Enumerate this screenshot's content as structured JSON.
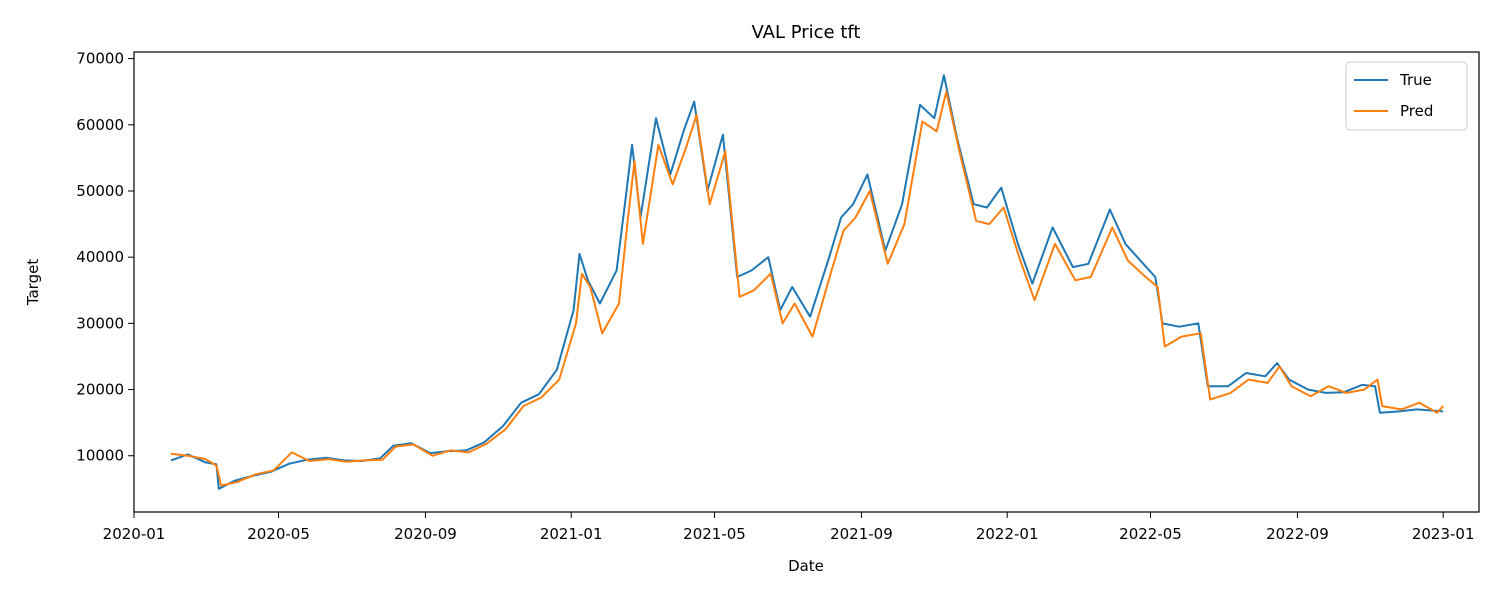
{
  "chart_data": {
    "type": "line",
    "title": "VAL Price tft",
    "xlabel": "Date",
    "ylabel": "Target",
    "xlim": [
      "2020-01-01",
      "2023-01-31"
    ],
    "ylim": [
      1500,
      71000
    ],
    "x_ticks": [
      "2020-01",
      "2020-05",
      "2020-09",
      "2021-01",
      "2021-05",
      "2021-09",
      "2022-01",
      "2022-05",
      "2022-09",
      "2023-01"
    ],
    "y_ticks": [
      10000,
      20000,
      30000,
      40000,
      50000,
      60000,
      70000
    ],
    "grid": false,
    "legend_position": "top-right",
    "series": [
      {
        "name": "True",
        "color": "#1f77b4",
        "points": [
          [
            "2020-02-01",
            9300
          ],
          [
            "2020-02-15",
            10200
          ],
          [
            "2020-03-01",
            9000
          ],
          [
            "2020-03-10",
            8700
          ],
          [
            "2020-03-12",
            5000
          ],
          [
            "2020-03-25",
            6200
          ],
          [
            "2020-04-10",
            7000
          ],
          [
            "2020-04-25",
            7600
          ],
          [
            "2020-05-10",
            8800
          ],
          [
            "2020-05-25",
            9400
          ],
          [
            "2020-06-10",
            9700
          ],
          [
            "2020-06-25",
            9300
          ],
          [
            "2020-07-10",
            9200
          ],
          [
            "2020-07-25",
            9600
          ],
          [
            "2020-08-05",
            11500
          ],
          [
            "2020-08-20",
            11900
          ],
          [
            "2020-09-05",
            10400
          ],
          [
            "2020-09-20",
            10700
          ],
          [
            "2020-10-05",
            10800
          ],
          [
            "2020-10-20",
            12000
          ],
          [
            "2020-11-05",
            14500
          ],
          [
            "2020-11-20",
            18000
          ],
          [
            "2020-12-05",
            19300
          ],
          [
            "2020-12-20",
            23000
          ],
          [
            "2021-01-03",
            32000
          ],
          [
            "2021-01-08",
            40500
          ],
          [
            "2021-01-15",
            36500
          ],
          [
            "2021-01-25",
            33000
          ],
          [
            "2021-02-08",
            38000
          ],
          [
            "2021-02-15",
            48000
          ],
          [
            "2021-02-21",
            57000
          ],
          [
            "2021-02-28",
            46000
          ],
          [
            "2021-03-13",
            61000
          ],
          [
            "2021-03-25",
            52500
          ],
          [
            "2021-04-05",
            59000
          ],
          [
            "2021-04-14",
            63500
          ],
          [
            "2021-04-25",
            50000
          ],
          [
            "2021-05-08",
            58500
          ],
          [
            "2021-05-20",
            37000
          ],
          [
            "2021-06-01",
            38000
          ],
          [
            "2021-06-15",
            40000
          ],
          [
            "2021-06-25",
            32000
          ],
          [
            "2021-07-05",
            35500
          ],
          [
            "2021-07-20",
            31000
          ],
          [
            "2021-08-05",
            40000
          ],
          [
            "2021-08-15",
            46000
          ],
          [
            "2021-08-25",
            48000
          ],
          [
            "2021-09-06",
            52500
          ],
          [
            "2021-09-21",
            41000
          ],
          [
            "2021-10-05",
            48000
          ],
          [
            "2021-10-20",
            63000
          ],
          [
            "2021-11-01",
            61000
          ],
          [
            "2021-11-09",
            67500
          ],
          [
            "2021-11-20",
            58000
          ],
          [
            "2021-12-04",
            48000
          ],
          [
            "2021-12-15",
            47500
          ],
          [
            "2021-12-27",
            50500
          ],
          [
            "2022-01-10",
            42000
          ],
          [
            "2022-01-22",
            36000
          ],
          [
            "2022-02-08",
            44500
          ],
          [
            "2022-02-25",
            38500
          ],
          [
            "2022-03-10",
            39000
          ],
          [
            "2022-03-28",
            47200
          ],
          [
            "2022-04-10",
            42000
          ],
          [
            "2022-04-25",
            39000
          ],
          [
            "2022-05-05",
            37000
          ],
          [
            "2022-05-11",
            30000
          ],
          [
            "2022-05-25",
            29500
          ],
          [
            "2022-06-10",
            30000
          ],
          [
            "2022-06-18",
            20500
          ],
          [
            "2022-07-05",
            20500
          ],
          [
            "2022-07-20",
            22500
          ],
          [
            "2022-08-05",
            22000
          ],
          [
            "2022-08-15",
            24000
          ],
          [
            "2022-08-25",
            21500
          ],
          [
            "2022-09-10",
            20000
          ],
          [
            "2022-09-25",
            19500
          ],
          [
            "2022-10-10",
            19600
          ],
          [
            "2022-10-25",
            20700
          ],
          [
            "2022-11-05",
            20500
          ],
          [
            "2022-11-09",
            16500
          ],
          [
            "2022-11-25",
            16700
          ],
          [
            "2022-12-10",
            17000
          ],
          [
            "2022-12-25",
            16800
          ],
          [
            "2023-01-01",
            16700
          ]
        ]
      },
      {
        "name": "Pred",
        "color": "#ff7f0e",
        "points": [
          [
            "2020-02-01",
            10300
          ],
          [
            "2020-02-15",
            10000
          ],
          [
            "2020-03-01",
            9500
          ],
          [
            "2020-03-10",
            8500
          ],
          [
            "2020-03-14",
            5500
          ],
          [
            "2020-03-27",
            6000
          ],
          [
            "2020-04-12",
            7200
          ],
          [
            "2020-04-27",
            7800
          ],
          [
            "2020-05-12",
            10500
          ],
          [
            "2020-05-27",
            9200
          ],
          [
            "2020-06-12",
            9500
          ],
          [
            "2020-06-27",
            9100
          ],
          [
            "2020-07-12",
            9300
          ],
          [
            "2020-07-27",
            9400
          ],
          [
            "2020-08-07",
            11400
          ],
          [
            "2020-08-22",
            11700
          ],
          [
            "2020-09-07",
            10000
          ],
          [
            "2020-09-22",
            10800
          ],
          [
            "2020-10-07",
            10500
          ],
          [
            "2020-10-22",
            11800
          ],
          [
            "2020-11-07",
            14000
          ],
          [
            "2020-11-22",
            17500
          ],
          [
            "2020-12-07",
            18800
          ],
          [
            "2020-12-22",
            21500
          ],
          [
            "2021-01-05",
            30000
          ],
          [
            "2021-01-10",
            37500
          ],
          [
            "2021-01-17",
            35500
          ],
          [
            "2021-01-27",
            28500
          ],
          [
            "2021-02-10",
            33000
          ],
          [
            "2021-02-17",
            45000
          ],
          [
            "2021-02-23",
            54500
          ],
          [
            "2021-03-02",
            42000
          ],
          [
            "2021-03-15",
            57000
          ],
          [
            "2021-03-27",
            51000
          ],
          [
            "2021-04-07",
            56500
          ],
          [
            "2021-04-16",
            61500
          ],
          [
            "2021-04-27",
            48000
          ],
          [
            "2021-05-10",
            56000
          ],
          [
            "2021-05-22",
            34000
          ],
          [
            "2021-06-03",
            35000
          ],
          [
            "2021-06-17",
            37500
          ],
          [
            "2021-06-27",
            30000
          ],
          [
            "2021-07-07",
            33000
          ],
          [
            "2021-07-22",
            28000
          ],
          [
            "2021-08-07",
            38000
          ],
          [
            "2021-08-17",
            44000
          ],
          [
            "2021-08-27",
            46000
          ],
          [
            "2021-09-08",
            50000
          ],
          [
            "2021-09-23",
            39000
          ],
          [
            "2021-10-07",
            45000
          ],
          [
            "2021-10-22",
            60500
          ],
          [
            "2021-11-03",
            59000
          ],
          [
            "2021-11-11",
            65000
          ],
          [
            "2021-11-22",
            56000
          ],
          [
            "2021-12-06",
            45500
          ],
          [
            "2021-12-17",
            45000
          ],
          [
            "2021-12-29",
            47500
          ],
          [
            "2022-01-12",
            39500
          ],
          [
            "2022-01-24",
            33500
          ],
          [
            "2022-02-10",
            42000
          ],
          [
            "2022-02-27",
            36500
          ],
          [
            "2022-03-12",
            37000
          ],
          [
            "2022-03-30",
            44500
          ],
          [
            "2022-04-12",
            39500
          ],
          [
            "2022-04-27",
            37000
          ],
          [
            "2022-05-07",
            35500
          ],
          [
            "2022-05-13",
            26500
          ],
          [
            "2022-05-27",
            28000
          ],
          [
            "2022-06-12",
            28500
          ],
          [
            "2022-06-20",
            18500
          ],
          [
            "2022-07-07",
            19500
          ],
          [
            "2022-07-22",
            21500
          ],
          [
            "2022-08-07",
            21000
          ],
          [
            "2022-08-17",
            23500
          ],
          [
            "2022-08-27",
            20500
          ],
          [
            "2022-09-12",
            19000
          ],
          [
            "2022-09-27",
            20500
          ],
          [
            "2022-10-12",
            19500
          ],
          [
            "2022-10-27",
            20000
          ],
          [
            "2022-11-07",
            21500
          ],
          [
            "2022-11-11",
            17500
          ],
          [
            "2022-11-27",
            17000
          ],
          [
            "2022-12-12",
            18000
          ],
          [
            "2022-12-27",
            16500
          ],
          [
            "2023-01-01",
            17500
          ]
        ]
      }
    ]
  }
}
